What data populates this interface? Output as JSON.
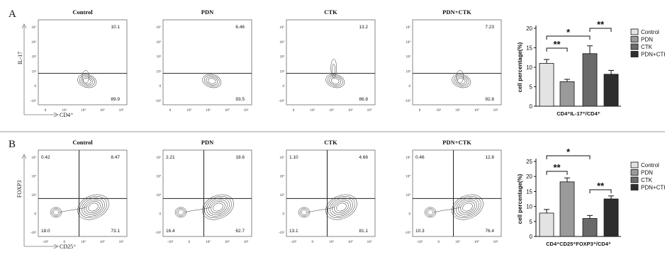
{
  "panels": [
    {
      "letter": "A",
      "y_axis_label": "IL-17",
      "x_axis_label": "CD4⁺",
      "x_ticks": [
        "0",
        "10³",
        "10³",
        "10⁴",
        "10⁵"
      ],
      "y_ticks": [
        "10⁵",
        "10⁴",
        "10³",
        "10²",
        "0",
        "-10³"
      ],
      "plots": [
        {
          "title": "Control",
          "quadrant_values": {
            "ur": "10.1",
            "lr": "89.9"
          }
        },
        {
          "title": "PDN",
          "quadrant_values": {
            "ur": "6.46",
            "lr": "93.5"
          }
        },
        {
          "title": "CTK",
          "quadrant_values": {
            "ur": "13.2",
            "lr": "86.8"
          }
        },
        {
          "title": "PDN+CTK",
          "quadrant_values": {
            "ur": "7.23",
            "lr": "92.8"
          }
        }
      ]
    },
    {
      "letter": "B",
      "y_axis_label": "FOXP3",
      "x_axis_label": "CD25⁺",
      "x_ticks": [
        "-10³",
        "0",
        "10³",
        "10⁴",
        "10⁵"
      ],
      "y_ticks": [
        "10⁵",
        "10⁴",
        "10³",
        "0",
        "-10³"
      ],
      "plots": [
        {
          "title": "Control",
          "quadrant_values": {
            "ul": "0.42",
            "ur": "8.47",
            "ll": "18.0",
            "lr": "73.1"
          }
        },
        {
          "title": "PDN",
          "quadrant_values": {
            "ul": "2.21",
            "ur": "18.6",
            "ll": "16.4",
            "lr": "62.7"
          }
        },
        {
          "title": "CTK",
          "quadrant_values": {
            "ul": "1.10",
            "ur": "4.66",
            "ll": "13.1",
            "lr": "81.1"
          }
        },
        {
          "title": "PDN+CTK",
          "quadrant_values": {
            "ul": "0.46",
            "ur": "12.8",
            "ll": "10.3",
            "lr": "76.4"
          }
        }
      ]
    }
  ],
  "chart_data": [
    {
      "type": "bar",
      "categories": [
        "Control",
        "PDN",
        "CTK",
        "PDN+CTK"
      ],
      "values": [
        11,
        6.3,
        13.5,
        8.2
      ],
      "errors": [
        1.0,
        0.6,
        2.0,
        1.0
      ],
      "ylim": [
        0,
        20
      ],
      "yticks": [
        "0",
        "5",
        "10",
        "15",
        "20"
      ],
      "ylabel": "cell percentage(%)",
      "xlabel": "CD4⁺IL-17⁺/CD4⁺",
      "significance": [
        {
          "label": "*",
          "from": 0,
          "to": 2
        },
        {
          "label": "**",
          "from": 0,
          "to": 1
        },
        {
          "label": "**",
          "from": 2,
          "to": 3
        }
      ],
      "legend_position": "right",
      "colors": [
        "#e3e3e3",
        "#9a9a9a",
        "#6a6a6a",
        "#2e2e2e"
      ]
    },
    {
      "type": "bar",
      "categories": [
        "Control",
        "PDN",
        "CTK",
        "PDN+CTK"
      ],
      "values": [
        7.8,
        18.2,
        6.0,
        12.5
      ],
      "errors": [
        1.2,
        1.3,
        1.0,
        1.0
      ],
      "ylim": [
        0,
        25
      ],
      "yticks": [
        "0",
        "5",
        "10",
        "15",
        "20",
        "25"
      ],
      "ylabel": "cell percentage(%)",
      "xlabel": "CD4⁺CD25⁺FOXP3⁺/CD4⁺",
      "significance": [
        {
          "label": "*",
          "from": 0,
          "to": 2
        },
        {
          "label": "**",
          "from": 0,
          "to": 1
        },
        {
          "label": "**",
          "from": 2,
          "to": 3
        }
      ],
      "legend_position": "right",
      "colors": [
        "#e3e3e3",
        "#9a9a9a",
        "#6a6a6a",
        "#2e2e2e"
      ]
    }
  ]
}
